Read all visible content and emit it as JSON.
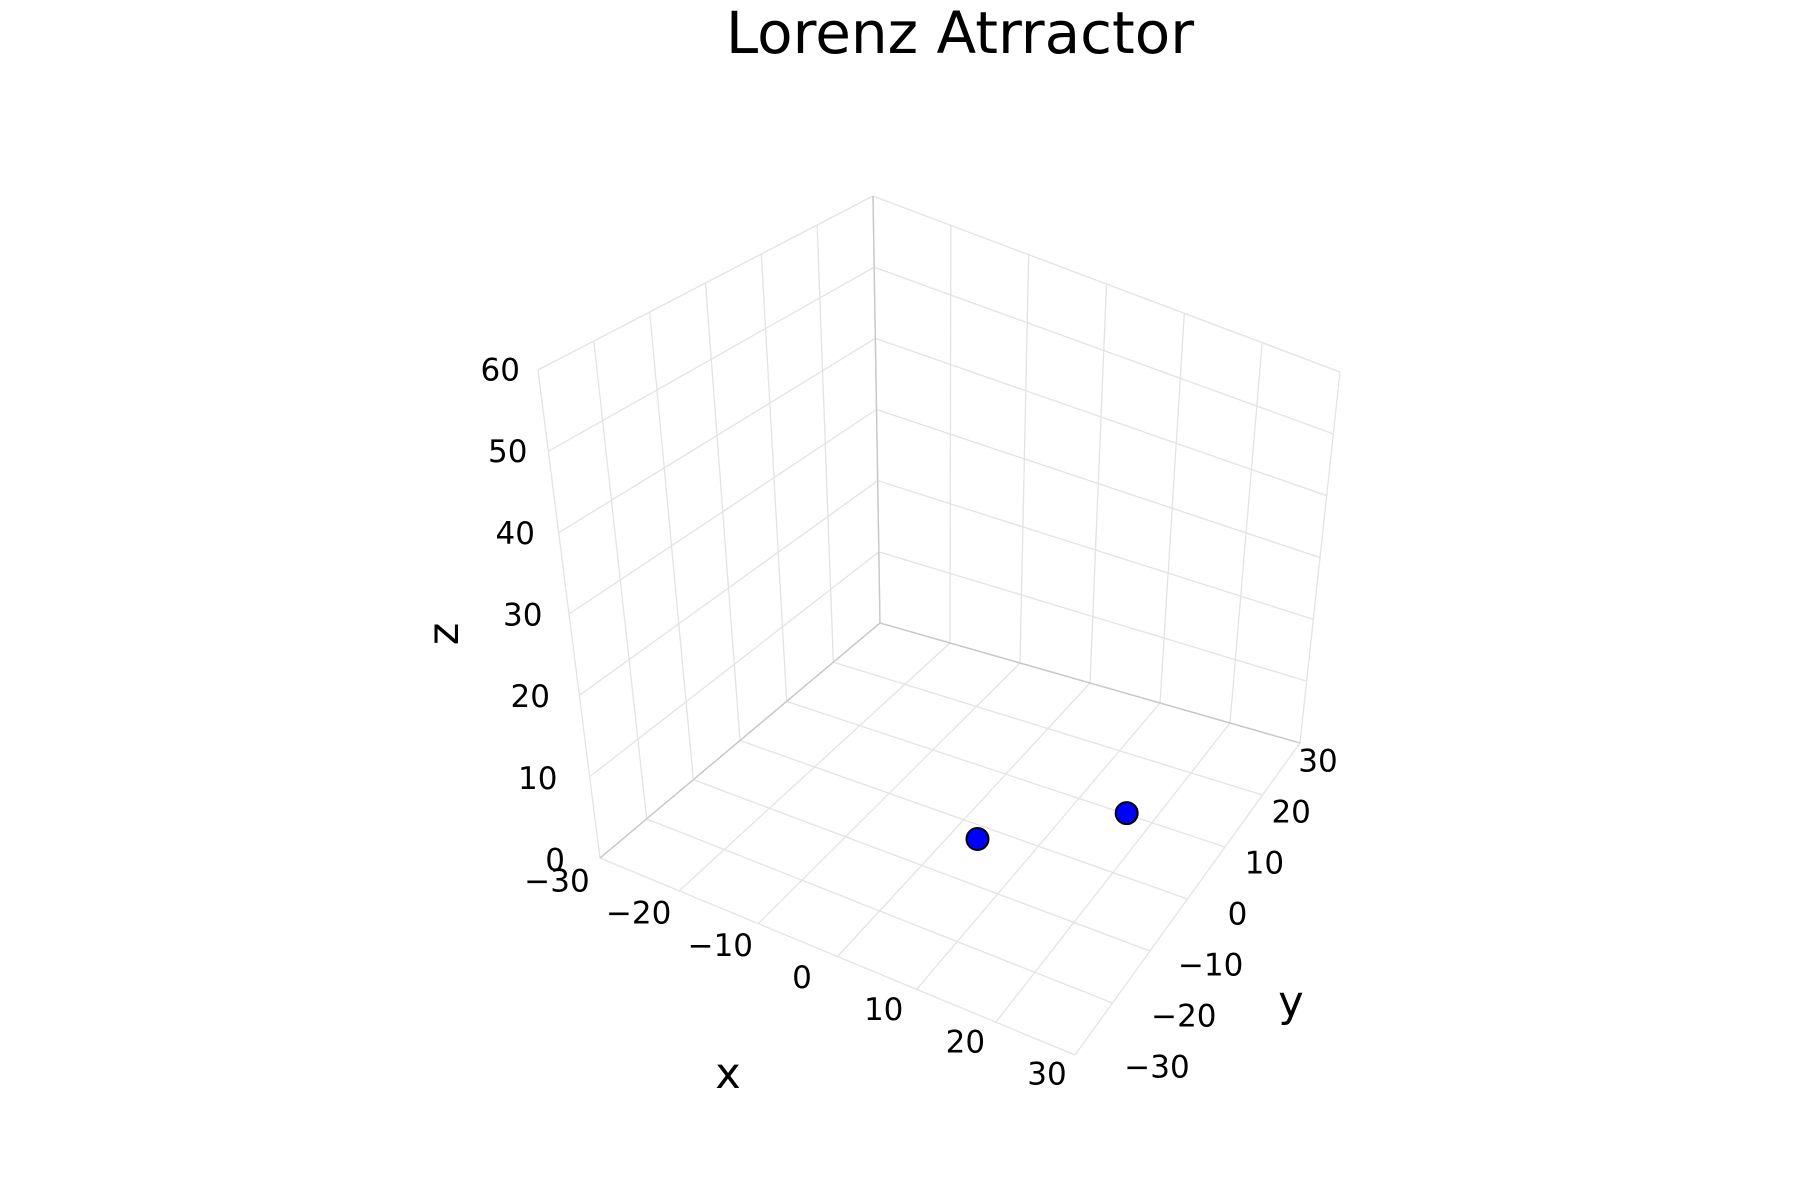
{
  "chart_data": {
    "type": "scatter",
    "projection": "3d",
    "title": "Lorenz Atrractor",
    "xlabel": "x",
    "ylabel": "y",
    "zlabel": "z",
    "xlim": [
      -30,
      30
    ],
    "ylim": [
      -30,
      30
    ],
    "zlim": [
      0,
      60
    ],
    "x_ticks": [
      "−30",
      "−20",
      "−10",
      "0",
      "10",
      "20",
      "30"
    ],
    "y_ticks": [
      "−30",
      "−20",
      "−10",
      "0",
      "10",
      "20",
      "30"
    ],
    "z_ticks": [
      "0",
      "10",
      "20",
      "30",
      "40",
      "50",
      "60"
    ],
    "grid": true,
    "series": [
      {
        "points": [
          {
            "x": 0.0,
            "y": 0.0,
            "z": 0.0
          },
          {
            "x": 10.0,
            "y": 15.0,
            "z": 0.0
          }
        ]
      }
    ],
    "colors": {
      "marker_fill": "#0000ff",
      "marker_edge": "#000000",
      "grid": "#e3e3e3",
      "text": "#000000"
    }
  }
}
